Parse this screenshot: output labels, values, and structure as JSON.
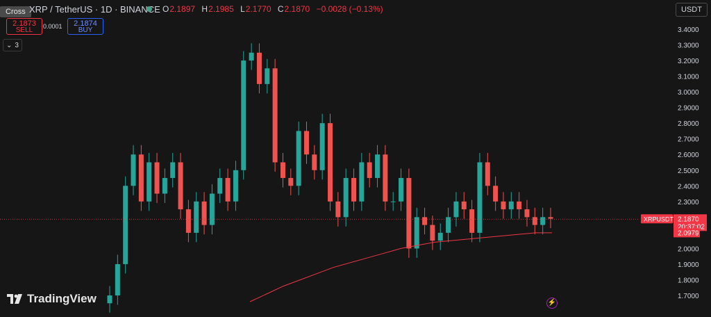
{
  "header": {
    "cross_label": "Cross",
    "symbol": "XRP / TetherUS · 1D · BINANCE",
    "ohlc": [
      {
        "key": "O",
        "value": "2.1897"
      },
      {
        "key": "H",
        "value": "2.1985"
      },
      {
        "key": "L",
        "value": "2.1770"
      },
      {
        "key": "C",
        "value": "2.1870"
      }
    ],
    "change": "−0.0028 (−0.13%)",
    "currency": "USDT"
  },
  "trade": {
    "sell_price": "2.1873",
    "sell_label": "SELL",
    "spread": "0.0001",
    "buy_price": "2.1874",
    "buy_label": "BUY",
    "indicators_count": "3"
  },
  "price_tags": {
    "symbol": "XRPUSDT",
    "last": "2.1870",
    "countdown": "20:37:02",
    "ma": "2.0979"
  },
  "brand": "TradingView",
  "colors": {
    "up": "#26a69a",
    "down": "#ef5350",
    "ma": "#f23645",
    "background": "#161616"
  },
  "chart_data": {
    "type": "candlestick",
    "y_ticks": [
      "3.4000",
      "3.3000",
      "3.2000",
      "3.1000",
      "3.0000",
      "2.9000",
      "2.8000",
      "2.7000",
      "2.6000",
      "2.5000",
      "2.4000",
      "2.3000",
      "2.2000",
      "2.1000",
      "2.0000",
      "1.9000",
      "1.8000",
      "1.7000"
    ],
    "ylim": [
      1.66,
      3.45
    ],
    "close": [
      1.7,
      1.9,
      2.4,
      2.6,
      2.3,
      2.55,
      2.35,
      2.45,
      2.55,
      2.25,
      2.1,
      2.3,
      2.15,
      2.35,
      2.45,
      2.3,
      2.5,
      3.2,
      3.25,
      3.05,
      3.15,
      2.55,
      2.45,
      2.4,
      2.75,
      2.6,
      2.5,
      2.8,
      2.3,
      2.2,
      2.45,
      2.3,
      2.55,
      2.45,
      2.6,
      2.3,
      2.3,
      2.45,
      2.0,
      2.2,
      2.15,
      2.05,
      2.1,
      2.2,
      2.3,
      2.25,
      2.1,
      2.55,
      2.4,
      2.3,
      2.25,
      2.3,
      2.25,
      2.2,
      2.15,
      2.2,
      2.19
    ],
    "ma": [
      1.66,
      1.71,
      1.76,
      1.8,
      1.84,
      1.88,
      1.91,
      1.94,
      1.97,
      2.0,
      2.02,
      2.04,
      2.05,
      2.06,
      2.07,
      2.08,
      2.09,
      2.1,
      2.1
    ]
  }
}
